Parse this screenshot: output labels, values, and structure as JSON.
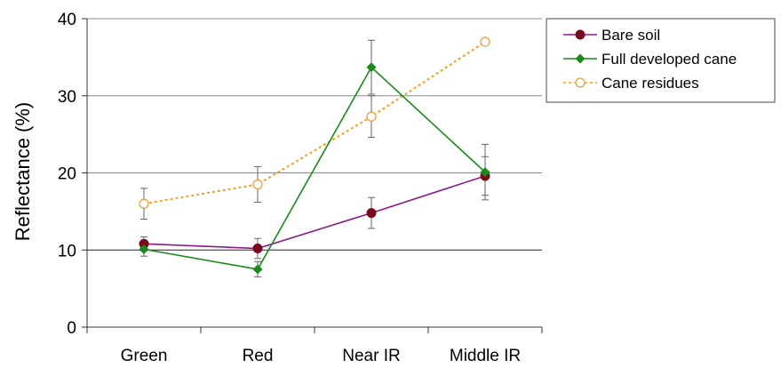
{
  "chart_data": {
    "type": "line",
    "title": "",
    "xlabel": "",
    "ylabel": "Reflectance (%)",
    "categories": [
      "Green",
      "Red",
      "Near IR",
      "Middle IR"
    ],
    "ylim": [
      0,
      40
    ],
    "yticks": [
      0,
      10,
      20,
      30,
      40
    ],
    "grid": "horizontal",
    "legend": "right",
    "series": [
      {
        "name": "Bare soil",
        "color": "#8b1a8b",
        "marker_color": "#7a0a1e",
        "marker": "circle-filled",
        "line_style": "solid",
        "values": [
          10.8,
          10.2,
          14.8,
          19.6
        ],
        "error": [
          0.9,
          1.3,
          2.0,
          2.5
        ]
      },
      {
        "name": "Full developed cane",
        "color": "#1a8a1a",
        "marker_color": "#1a8a1a",
        "marker": "diamond-filled",
        "line_style": "solid",
        "values": [
          10.1,
          7.5,
          33.7,
          20.1
        ],
        "error": [
          0.9,
          1.0,
          3.5,
          3.6
        ]
      },
      {
        "name": "Cane residues",
        "color": "#f0a020",
        "marker_color": "#e8a040",
        "marker": "circle-open",
        "line_style": "dotted",
        "values": [
          16.0,
          18.5,
          27.3,
          37.0
        ],
        "error": [
          2.0,
          2.3,
          2.7,
          0
        ]
      }
    ]
  }
}
